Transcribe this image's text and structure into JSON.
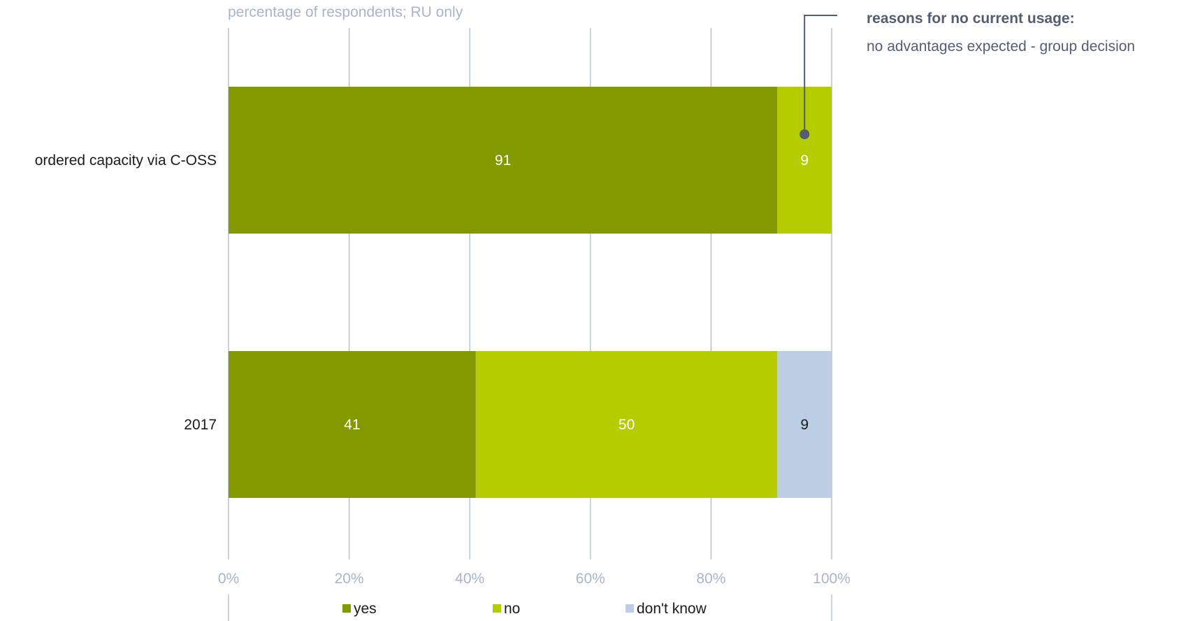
{
  "chart_data": {
    "type": "bar",
    "orientation": "horizontal",
    "stacked": true,
    "subtitle": "percentage of respondents; RU only",
    "categories": [
      "ordered capacity via C-OSS",
      "2017"
    ],
    "series": [
      {
        "name": "yes",
        "color": "#849900",
        "label_color": "#ffffff",
        "values": [
          91,
          41
        ]
      },
      {
        "name": "no",
        "color": "#b4cc00",
        "label_color": "#ffffff",
        "values": [
          9,
          50
        ]
      },
      {
        "name": "don't know",
        "color": "#bccde4",
        "label_color": "#1b1b1b",
        "values": [
          0,
          9
        ]
      }
    ],
    "xlim": [
      0,
      100
    ],
    "x_ticks": [
      "0%",
      "20%",
      "40%",
      "60%",
      "80%",
      "100%"
    ],
    "grid": true,
    "legend_position": "bottom",
    "annotation": {
      "title": "reasons for no current usage:",
      "text": "no advantages expected - group decision",
      "points_to": {
        "category": "ordered capacity via C-OSS",
        "series": "no"
      }
    }
  },
  "colors": {
    "grid": "#a7b5cc",
    "tick_text": "#a7b5cc",
    "category_text": "#1b1b1b",
    "annotation": "#535e72"
  }
}
